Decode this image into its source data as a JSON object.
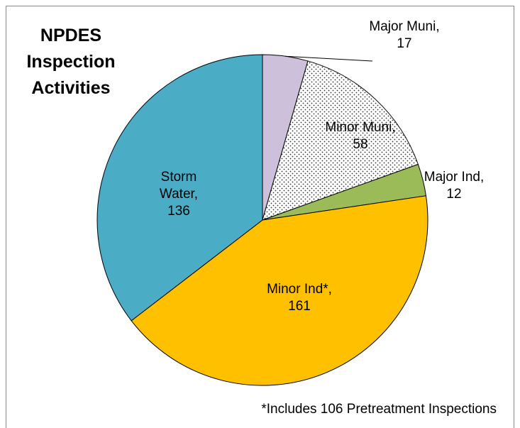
{
  "chart_data": {
    "type": "pie",
    "title": "NPDES Inspection Activities",
    "categories": [
      "Major Muni",
      "Minor Muni",
      "Major Ind",
      "Minor Ind*",
      "Storm Water"
    ],
    "values": [
      17,
      58,
      12,
      161,
      136
    ],
    "value_labels": [
      "Major Muni, 17",
      "Minor Muni, 58",
      "Major Ind, 12",
      "Minor Ind*, 161",
      "Storm Water, 136"
    ],
    "colors": [
      "#ccc0da",
      "#ffffff",
      "#9bbb59",
      "#ffc000",
      "#4bacc6"
    ],
    "patterns": [
      null,
      "dots",
      null,
      null,
      null
    ],
    "annotation": "*Includes 106 Pretreatment Inspections"
  }
}
